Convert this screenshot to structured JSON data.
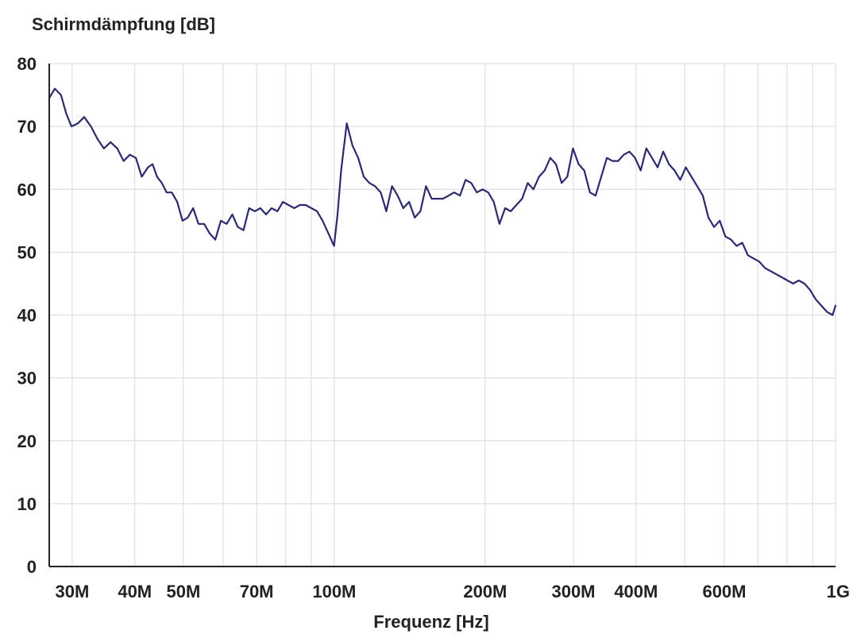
{
  "chart_data": {
    "type": "line",
    "ylabel": "Schirmdämpfung [dB]",
    "xlabel": "Frequenz [Hz]",
    "x_scale": "log",
    "xlim": [
      27000000,
      1000000000
    ],
    "ylim": [
      0,
      80
    ],
    "yticks": [
      0,
      10,
      20,
      30,
      40,
      50,
      60,
      70,
      80
    ],
    "xticks": [
      {
        "value": 30000000,
        "label": "30M"
      },
      {
        "value": 40000000,
        "label": "40M"
      },
      {
        "value": 50000000,
        "label": "50M"
      },
      {
        "value": 70000000,
        "label": "70M"
      },
      {
        "value": 100000000,
        "label": "100M"
      },
      {
        "value": 200000000,
        "label": "200M"
      },
      {
        "value": 300000000,
        "label": "300M"
      },
      {
        "value": 400000000,
        "label": "400M"
      },
      {
        "value": 600000000,
        "label": "600M"
      },
      {
        "value": 1000000000,
        "label": "1G"
      }
    ],
    "grid_x": [
      30000000,
      40000000,
      50000000,
      60000000,
      70000000,
      80000000,
      90000000,
      100000000,
      200000000,
      300000000,
      400000000,
      500000000,
      600000000,
      700000000,
      800000000,
      900000000,
      1000000000
    ],
    "grid_y": [
      10,
      20,
      30,
      40,
      50,
      60,
      70,
      80
    ],
    "series": [
      {
        "color": "#2b2a6e",
        "points": [
          [
            27000000,
            74.5
          ],
          [
            27700000,
            76
          ],
          [
            28500000,
            75
          ],
          [
            29200000,
            72
          ],
          [
            29900000,
            70
          ],
          [
            30800000,
            70.5
          ],
          [
            31700000,
            71.5
          ],
          [
            32700000,
            70
          ],
          [
            33700000,
            68
          ],
          [
            34700000,
            66.5
          ],
          [
            35800000,
            67.5
          ],
          [
            36900000,
            66.5
          ],
          [
            38000000,
            64.5
          ],
          [
            39100000,
            65.5
          ],
          [
            40200000,
            65
          ],
          [
            41300000,
            62
          ],
          [
            42500000,
            63.5
          ],
          [
            43400000,
            64
          ],
          [
            44300000,
            62
          ],
          [
            45300000,
            61
          ],
          [
            46300000,
            59.5
          ],
          [
            47400000,
            59.5
          ],
          [
            48600000,
            58
          ],
          [
            49800000,
            55
          ],
          [
            51000000,
            55.5
          ],
          [
            52300000,
            57
          ],
          [
            53600000,
            54.5
          ],
          [
            55000000,
            54.5
          ],
          [
            56400000,
            53
          ],
          [
            57900000,
            52
          ],
          [
            59400000,
            55
          ],
          [
            61000000,
            54.5
          ],
          [
            62600000,
            56
          ],
          [
            64200000,
            54
          ],
          [
            65900000,
            53.5
          ],
          [
            67600000,
            57
          ],
          [
            69400000,
            56.5
          ],
          [
            71200000,
            57
          ],
          [
            73100000,
            56
          ],
          [
            75000000,
            57
          ],
          [
            77000000,
            56.5
          ],
          [
            79000000,
            58
          ],
          [
            81000000,
            57.5
          ],
          [
            83200000,
            57
          ],
          [
            85400000,
            57.5
          ],
          [
            87700000,
            57.5
          ],
          [
            90000000,
            57
          ],
          [
            92400000,
            56.5
          ],
          [
            94800000,
            55
          ],
          [
            97300000,
            53
          ],
          [
            99900000,
            51
          ],
          [
            101500000,
            56
          ],
          [
            103200000,
            63
          ],
          [
            105900000,
            70.5
          ],
          [
            108700000,
            67
          ],
          [
            111600000,
            65
          ],
          [
            114500000,
            62
          ],
          [
            117500000,
            61
          ],
          [
            120600000,
            60.5
          ],
          [
            123800000,
            59.5
          ],
          [
            127000000,
            56.5
          ],
          [
            130400000,
            60.5
          ],
          [
            133800000,
            59
          ],
          [
            137300000,
            57
          ],
          [
            141000000,
            58
          ],
          [
            144700000,
            55.5
          ],
          [
            148500000,
            56.5
          ],
          [
            152400000,
            60.5
          ],
          [
            156400000,
            58.5
          ],
          [
            160500000,
            58.5
          ],
          [
            164700000,
            58.5
          ],
          [
            169100000,
            59
          ],
          [
            173500000,
            59.5
          ],
          [
            178100000,
            59
          ],
          [
            182800000,
            61.5
          ],
          [
            187600000,
            61
          ],
          [
            192500000,
            59.5
          ],
          [
            197600000,
            60
          ],
          [
            202800000,
            59.5
          ],
          [
            208100000,
            58
          ],
          [
            213600000,
            54.5
          ],
          [
            219200000,
            57
          ],
          [
            225000000,
            56.5
          ],
          [
            230900000,
            57.5
          ],
          [
            237000000,
            58.5
          ],
          [
            243200000,
            61
          ],
          [
            249600000,
            60
          ],
          [
            256200000,
            62
          ],
          [
            262900000,
            63
          ],
          [
            269800000,
            65
          ],
          [
            276900000,
            64
          ],
          [
            284200000,
            61
          ],
          [
            291700000,
            62
          ],
          [
            299300000,
            66.5
          ],
          [
            307200000,
            64
          ],
          [
            315300000,
            63
          ],
          [
            323600000,
            59.5
          ],
          [
            332100000,
            59
          ],
          [
            340800000,
            62
          ],
          [
            349800000,
            65
          ],
          [
            359000000,
            64.5
          ],
          [
            368400000,
            64.5
          ],
          [
            378100000,
            65.5
          ],
          [
            388000000,
            66
          ],
          [
            398200000,
            65
          ],
          [
            408700000,
            63
          ],
          [
            419400000,
            66.5
          ],
          [
            430400000,
            65
          ],
          [
            441700000,
            63.5
          ],
          [
            453300000,
            66
          ],
          [
            465200000,
            64
          ],
          [
            477400000,
            63
          ],
          [
            490000000,
            61.5
          ],
          [
            502800000,
            63.5
          ],
          [
            516000000,
            62
          ],
          [
            529600000,
            60.5
          ],
          [
            543500000,
            59
          ],
          [
            557800000,
            55.5
          ],
          [
            572400000,
            54
          ],
          [
            587400000,
            55
          ],
          [
            602900000,
            52.5
          ],
          [
            618700000,
            52
          ],
          [
            634900000,
            51
          ],
          [
            651600000,
            51.5
          ],
          [
            668700000,
            49.5
          ],
          [
            686300000,
            49
          ],
          [
            704300000,
            48.5
          ],
          [
            722800000,
            47.5
          ],
          [
            741800000,
            47
          ],
          [
            761300000,
            46.5
          ],
          [
            781300000,
            46
          ],
          [
            801800000,
            45.5
          ],
          [
            822900000,
            45
          ],
          [
            844500000,
            45.5
          ],
          [
            866700000,
            45
          ],
          [
            889500000,
            44
          ],
          [
            912800000,
            42.5
          ],
          [
            936800000,
            41.5
          ],
          [
            961500000,
            40.5
          ],
          [
            986700000,
            40
          ],
          [
            1000000000,
            41.5
          ]
        ]
      }
    ]
  },
  "colors": {
    "line": "#2b2a6e",
    "grid": "#d9d9d9",
    "axis": "#222222",
    "text": "#222222"
  }
}
